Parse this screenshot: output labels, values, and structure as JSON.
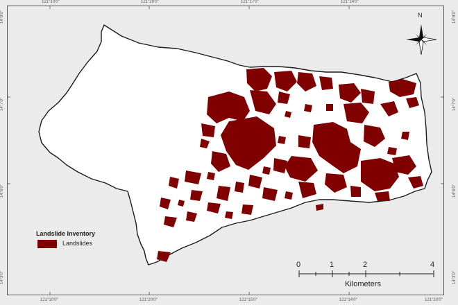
{
  "coordinates": {
    "top": [
      "121°10'0\"",
      "121°20'0\"",
      "121°17'0\"",
      "121°14'0\""
    ],
    "bottom": [
      "121°10'0\"",
      "121°20'0\"",
      "121°15'0\"",
      "121°14'0\"",
      "121°20'0\""
    ],
    "left": [
      "14°8'0\"",
      "14°7'0\"",
      "14°6'0\"",
      "14°3'0\""
    ],
    "right": [
      "14°8'0\"",
      "14°7'0\"",
      "14°6'0\"",
      "14°3'0\""
    ]
  },
  "legend": {
    "title": "Landslide Inventory",
    "items": [
      {
        "label": "Landslides",
        "color": "#800000"
      }
    ]
  },
  "scale_bar": {
    "ticks": [
      "0",
      "1",
      "2",
      "4"
    ],
    "unit": "Kilometers"
  },
  "north_arrow": {
    "label": "N"
  },
  "colors": {
    "landslide": "#800000",
    "boundary": "#1a1a1a",
    "land": "#ffffff",
    "background": "#ebebeb"
  }
}
